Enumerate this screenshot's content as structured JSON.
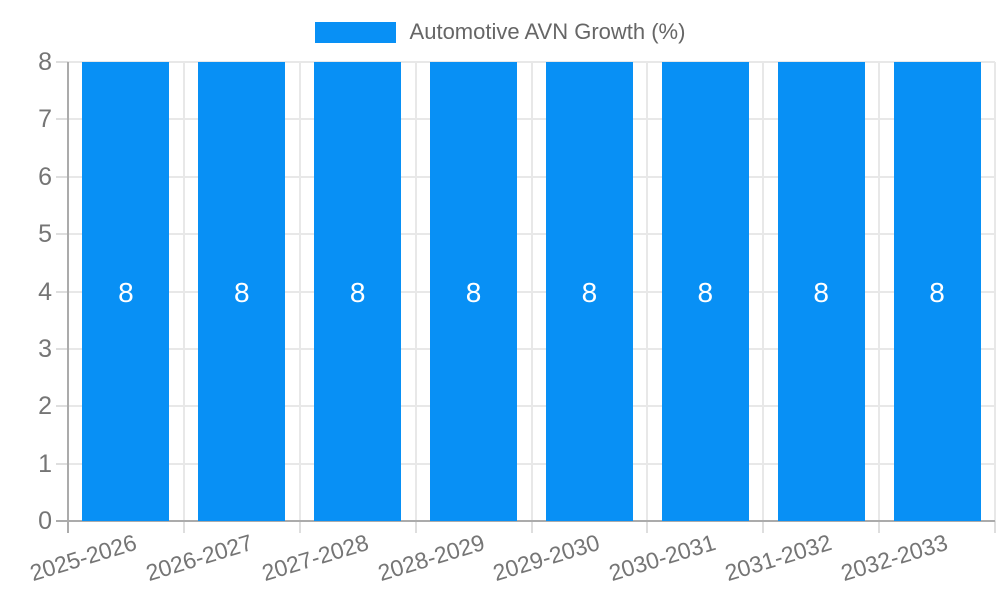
{
  "chart_data": {
    "type": "bar",
    "title": "Automotive AVN Growth (%)",
    "categories": [
      "2025-2026",
      "2026-2027",
      "2027-2028",
      "2028-2029",
      "2029-2030",
      "2030-2031",
      "2031-2032",
      "2032-2033"
    ],
    "series": [
      {
        "name": "Automotive AVN Growth (%)",
        "values": [
          8,
          8,
          8,
          8,
          8,
          8,
          8,
          8
        ]
      }
    ],
    "value_labels": [
      "8",
      "8",
      "8",
      "8",
      "8",
      "8",
      "8",
      "8"
    ],
    "xlabel": "",
    "ylabel": "",
    "ylim": [
      0,
      8
    ],
    "yticks": [
      0,
      1,
      2,
      3,
      4,
      5,
      6,
      7,
      8
    ],
    "grid": true,
    "legend_position": "top-center",
    "x_label_rotation_deg": -17
  },
  "legend": {
    "items": [
      {
        "label": "Automotive AVN Growth (%)",
        "color": "#0890F5"
      }
    ]
  },
  "colors": {
    "background": "#FFFFFF",
    "bar": "#0890F5",
    "bar_value_text": "#FFFFFF",
    "axis_line": "#ABABAB",
    "grid_line": "#E8E8E8",
    "tick_line": "#DEDEDE",
    "axis_label_text": "#757575",
    "legend_text": "#666666"
  }
}
